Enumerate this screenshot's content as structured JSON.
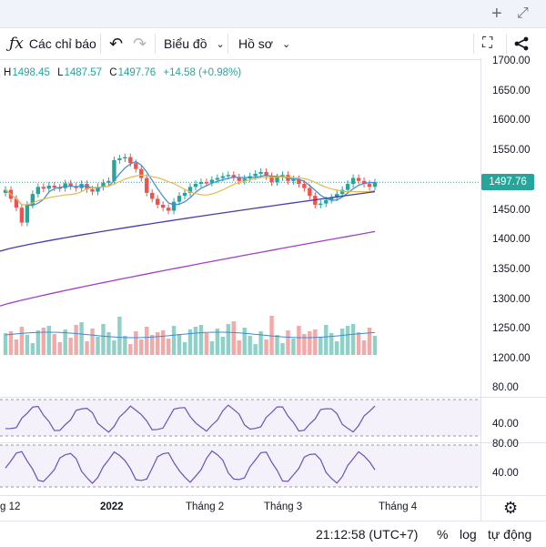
{
  "toolbar": {
    "indicators_label": "Các chỉ báo",
    "chart_type_label": "Biểu đồ",
    "profile_label": "Hồ sơ"
  },
  "legend": {
    "h_key": "H",
    "h_val": "1498.45",
    "l_key": "L",
    "l_val": "1487.57",
    "c_key": "C",
    "c_val": "1497.76",
    "change": "+14.58 (+0.98%)"
  },
  "price_axis": [
    "1700.00",
    "1650.00",
    "1600.00",
    "1550.00",
    "1500.00",
    "1450.00",
    "1400.00",
    "1350.00",
    "1300.00",
    "1250.00",
    "1200.00"
  ],
  "last_price": "1497.76",
  "osc1_axis": [
    "80.00",
    "40.00"
  ],
  "osc2_axis": [
    "80.00",
    "40.00"
  ],
  "time_axis": [
    "g 12",
    "2022",
    "Tháng 2",
    "Tháng 3",
    "Tháng 4"
  ],
  "status": {
    "time": "21:12:58 (UTC+7)",
    "percent": "%",
    "log": "log",
    "auto": "tự động"
  },
  "colors": {
    "up": "#26a69a",
    "down": "#ef5350",
    "ma_short": "#3c8bd9",
    "ma_mid": "#e8b94a",
    "ma_long": "#4a3ba8",
    "ma_200": "#a23fc9",
    "osc": "#6a52b8"
  },
  "chart_data": {
    "type": "line",
    "close": [
      1485,
      1470,
      1455,
      1430,
      1460,
      1478,
      1490,
      1487,
      1492,
      1489,
      1488,
      1496,
      1491,
      1488,
      1495,
      1486,
      1482,
      1490,
      1497,
      1500,
      1535,
      1538,
      1540,
      1530,
      1520,
      1505,
      1480,
      1470,
      1460,
      1455,
      1450,
      1465,
      1475,
      1480,
      1490,
      1495,
      1498,
      1497,
      1502,
      1505,
      1508,
      1510,
      1506,
      1500,
      1504,
      1508,
      1512,
      1515,
      1508,
      1498,
      1506,
      1510,
      1500,
      1503,
      1495,
      1488,
      1475,
      1460,
      1462,
      1468,
      1472,
      1478,
      1485,
      1495,
      1505,
      1500,
      1495,
      1490,
      1497.76
    ]
  }
}
